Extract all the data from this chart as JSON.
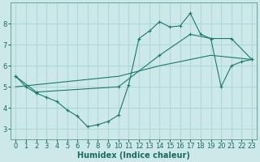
{
  "bg_color": "#cce8e8",
  "grid_color": "#b0d8d8",
  "line_color": "#1a7a6e",
  "marker_color": "#1a7a6e",
  "xlabel": "Humidex (Indice chaleur)",
  "xlabel_fontsize": 7,
  "tick_fontsize": 6,
  "xlim": [
    -0.5,
    23.5
  ],
  "ylim": [
    2.5,
    9.0
  ],
  "yticks": [
    3,
    4,
    5,
    6,
    7,
    8
  ],
  "xticks": [
    0,
    1,
    2,
    3,
    4,
    5,
    6,
    7,
    8,
    9,
    10,
    11,
    12,
    13,
    14,
    15,
    16,
    17,
    18,
    19,
    20,
    21,
    22,
    23
  ],
  "series1_x": [
    0,
    1,
    2,
    3,
    4,
    5,
    6,
    7,
    8,
    9,
    10,
    11,
    12,
    13,
    14,
    15,
    16,
    17,
    18,
    19,
    20,
    21,
    22,
    23
  ],
  "series1_y": [
    5.5,
    5.0,
    4.7,
    4.5,
    4.3,
    3.9,
    3.6,
    3.1,
    3.2,
    3.35,
    3.65,
    5.1,
    7.3,
    7.65,
    8.1,
    7.85,
    7.9,
    8.5,
    7.5,
    7.3,
    5.0,
    6.0,
    6.2,
    6.3
  ],
  "series2_x": [
    0,
    2,
    10,
    14,
    17,
    19,
    21,
    23
  ],
  "series2_y": [
    5.5,
    4.75,
    5.0,
    6.5,
    7.5,
    7.3,
    7.3,
    6.3
  ],
  "series3_x": [
    0,
    10,
    14,
    19,
    23
  ],
  "series3_y": [
    5.0,
    5.5,
    6.0,
    6.5,
    6.3
  ]
}
